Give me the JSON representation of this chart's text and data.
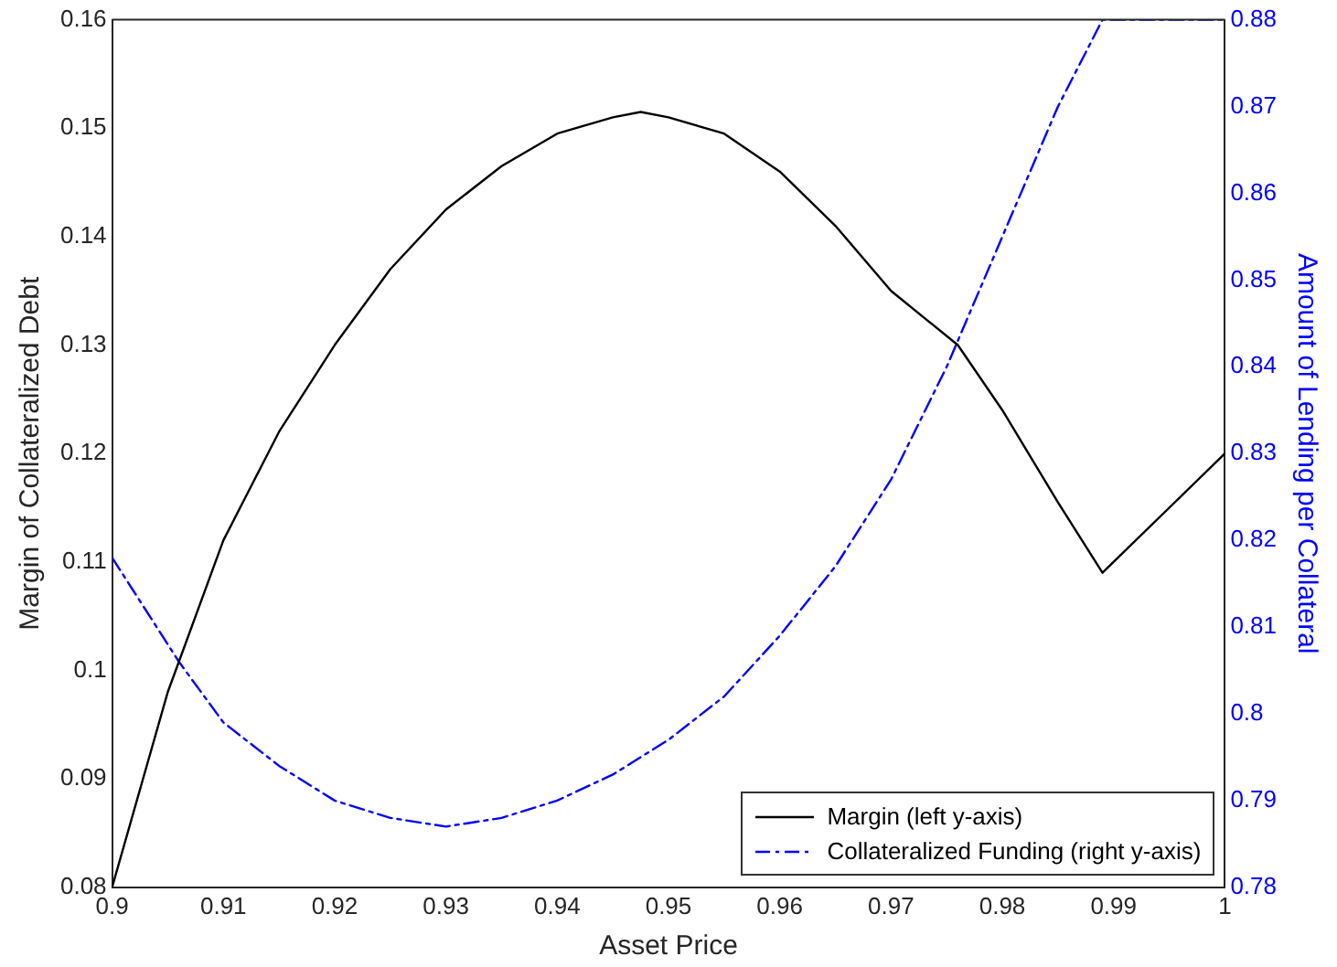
{
  "chart_data": {
    "type": "line",
    "xlabel": "Asset Price",
    "ylabel": "Margin of Collateralized Debt",
    "y2label": "Amount of Lending per Collateral",
    "xlim": [
      0.9,
      1
    ],
    "xticks": [
      0.9,
      0.91,
      0.92,
      0.93,
      0.94,
      0.95,
      0.96,
      0.97,
      0.98,
      0.99,
      1
    ],
    "ylim": [
      0.08,
      0.16
    ],
    "yticks": [
      0.08,
      0.09,
      0.1,
      0.11,
      0.12,
      0.13,
      0.14,
      0.15,
      0.16
    ],
    "y2lim": [
      0.78,
      0.88
    ],
    "y2ticks": [
      0.78,
      0.79,
      0.8,
      0.81,
      0.82,
      0.83,
      0.84,
      0.85,
      0.86,
      0.87,
      0.88
    ],
    "grid": false,
    "legend": "bottom right",
    "marker": "none",
    "series": [
      {
        "name": "Margin (left y-axis)",
        "color": "#000000",
        "line_style": "solid",
        "x": [
          0.9,
          0.905,
          0.91,
          0.915,
          0.92,
          0.925,
          0.93,
          0.935,
          0.94,
          0.945,
          0.9475,
          0.95,
          0.955,
          0.96,
          0.965,
          0.97,
          0.976,
          0.98,
          0.985,
          0.989,
          1
        ],
        "values": [
          0.08,
          0.098,
          0.112,
          0.122,
          0.13,
          0.137,
          0.1425,
          0.1465,
          0.1495,
          0.151,
          0.1515,
          0.151,
          0.1495,
          0.146,
          0.141,
          0.135,
          0.13,
          0.124,
          0.1155,
          0.109,
          0.12
        ]
      },
      {
        "name": "Collateralized Funding (right y-axis)",
        "color": "#0000ff",
        "line_style": "dashed",
        "axis": "y2",
        "x": [
          0.9,
          0.906,
          0.91,
          0.915,
          0.92,
          0.925,
          0.93,
          0.935,
          0.94,
          0.945,
          0.95,
          0.955,
          0.96,
          0.965,
          0.97,
          0.975,
          0.98,
          0.985,
          0.989,
          1
        ],
        "values": [
          0.818,
          0.806,
          0.799,
          0.794,
          0.79,
          0.788,
          0.787,
          0.788,
          0.79,
          0.793,
          0.797,
          0.802,
          0.809,
          0.817,
          0.827,
          0.84,
          0.855,
          0.87,
          0.88,
          0.88
        ]
      }
    ]
  }
}
